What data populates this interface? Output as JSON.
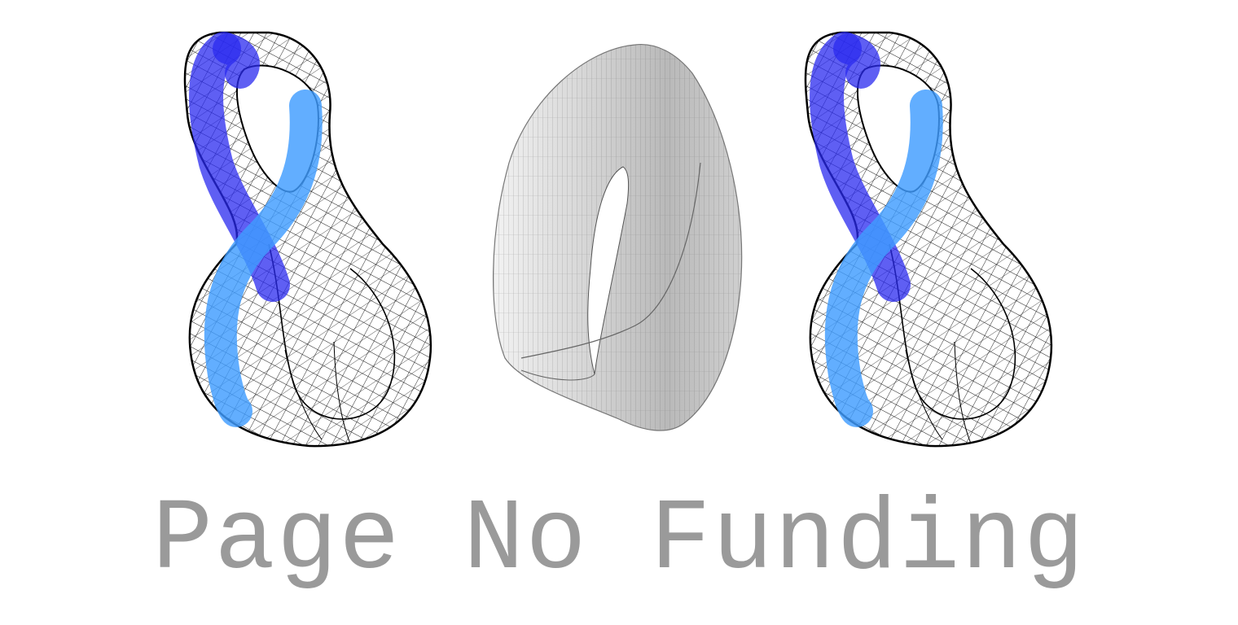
{
  "caption": "Page No Funding",
  "colors": {
    "background": "#ffffff",
    "caption_text": "#9a9a9a",
    "wireframe": "#111111",
    "stripe_dark": "#3a3aee",
    "stripe_light": "#4aa3ff",
    "mobius_surface": "#c4c4c4"
  },
  "figures": [
    {
      "name": "klein-bottle-wireframe",
      "description_icon": "klein-bottle-icon"
    },
    {
      "name": "mobius-strip",
      "description_icon": "mobius-strip-icon"
    },
    {
      "name": "klein-bottle-wireframe",
      "description_icon": "klein-bottle-icon"
    }
  ]
}
